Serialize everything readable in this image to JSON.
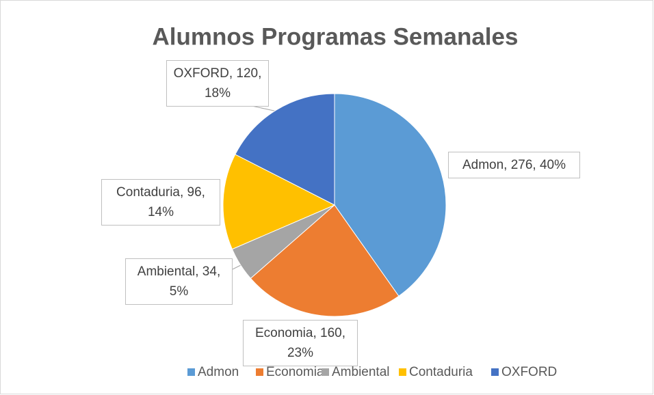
{
  "chart_data": {
    "type": "pie",
    "title": "Alumnos Programas Semanales",
    "categories": [
      "Admon",
      "Economia",
      "Ambiental",
      "Contaduria",
      "OXFORD"
    ],
    "values": [
      276,
      160,
      34,
      96,
      120
    ],
    "value_labels": [
      "Admon, 276, 40%",
      "Economia, 160, 23%",
      "Ambiental, 34, 5%",
      "Contaduria, 96, 14%",
      "OXFORD, 120, 18%"
    ],
    "colors": [
      "#5b9bd5",
      "#ed7d31",
      "#a5a5a5",
      "#ffc000",
      "#4472c4"
    ],
    "legend": "bottom"
  }
}
